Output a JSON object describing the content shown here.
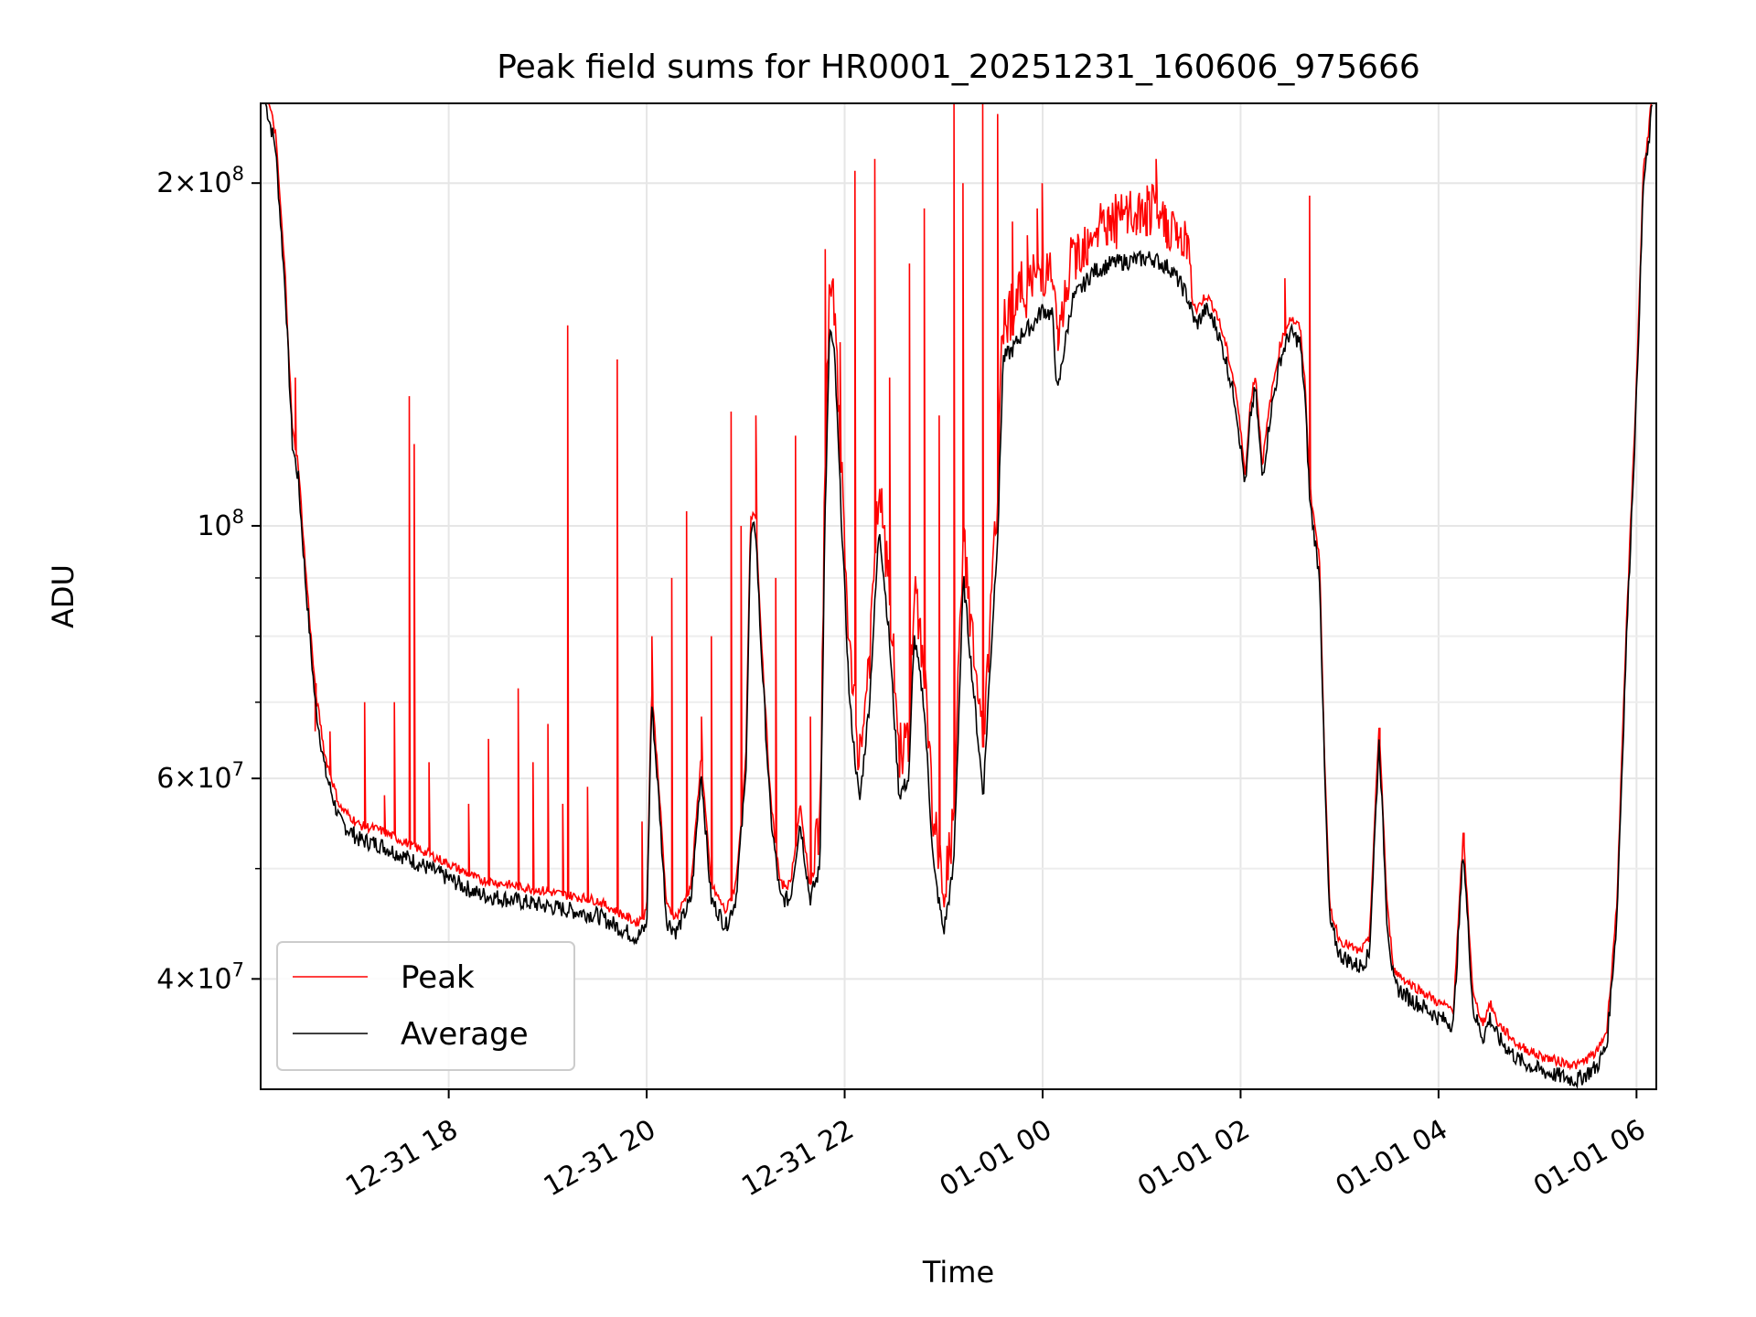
{
  "chart_data": {
    "type": "line",
    "title": "Peak field sums for HR0001_20251231_160606_975666",
    "xlabel": "Time",
    "ylabel": "ADU",
    "y_scale": "log",
    "ylim": [
      32000000,
      235000000
    ],
    "x_unit": "hours since 2025-12-31 16:06",
    "xlim": [
      0.0,
      14.1
    ],
    "grid": true,
    "legend_position": "lower-left",
    "x_ticks": [
      {
        "x": 1.9,
        "label": "12-31 18"
      },
      {
        "x": 3.9,
        "label": "12-31 20"
      },
      {
        "x": 5.9,
        "label": "12-31 22"
      },
      {
        "x": 7.9,
        "label": "01-01 00"
      },
      {
        "x": 9.9,
        "label": "01-01 02"
      },
      {
        "x": 11.9,
        "label": "01-01 04"
      },
      {
        "x": 13.9,
        "label": "01-01 06"
      }
    ],
    "y_ticks": [
      {
        "y": 200000000,
        "mantissa": "2",
        "times": "×10",
        "exp": "8"
      },
      {
        "y": 100000000,
        "mantissa": "",
        "times": "10",
        "exp": "8"
      },
      {
        "y": 60000000,
        "mantissa": "6",
        "times": "×10",
        "exp": "7"
      },
      {
        "y": 40000000,
        "mantissa": "4",
        "times": "×10",
        "exp": "7"
      }
    ],
    "y_minor_ticks": [
      50000000,
      70000000,
      80000000,
      90000000
    ],
    "legend": [
      {
        "name": "Peak",
        "color": "#ff0000"
      },
      {
        "name": "Average",
        "color": "#000000"
      }
    ],
    "series": [
      {
        "name": "Average",
        "color": "#000000",
        "points": [
          [
            0.05,
            235000000
          ],
          [
            0.15,
            215000000
          ],
          [
            0.25,
            160000000
          ],
          [
            0.32,
            118000000
          ],
          [
            0.38,
            110000000
          ],
          [
            0.45,
            90000000
          ],
          [
            0.55,
            70000000
          ],
          [
            0.65,
            61000000
          ],
          [
            0.8,
            55000000
          ],
          [
            1.0,
            53000000
          ],
          [
            1.2,
            52500000
          ],
          [
            1.4,
            51500000
          ],
          [
            1.6,
            50500000
          ],
          [
            1.8,
            49500000
          ],
          [
            2.0,
            48500000
          ],
          [
            2.2,
            47500000
          ],
          [
            2.5,
            47000000
          ],
          [
            2.8,
            46500000
          ],
          [
            3.1,
            46000000
          ],
          [
            3.4,
            45500000
          ],
          [
            3.6,
            44500000
          ],
          [
            3.8,
            43500000
          ],
          [
            3.9,
            44500000
          ],
          [
            3.95,
            70000000
          ],
          [
            4.02,
            58000000
          ],
          [
            4.1,
            45000000
          ],
          [
            4.2,
            44000000
          ],
          [
            4.35,
            47000000
          ],
          [
            4.45,
            61000000
          ],
          [
            4.55,
            47000000
          ],
          [
            4.7,
            44500000
          ],
          [
            4.8,
            47000000
          ],
          [
            4.9,
            60000000
          ],
          [
            4.95,
            98000000
          ],
          [
            5.0,
            100000000
          ],
          [
            5.05,
            80000000
          ],
          [
            5.15,
            56000000
          ],
          [
            5.25,
            47000000
          ],
          [
            5.35,
            47000000
          ],
          [
            5.45,
            55000000
          ],
          [
            5.55,
            47000000
          ],
          [
            5.65,
            50000000
          ],
          [
            5.7,
            100000000
          ],
          [
            5.75,
            150000000
          ],
          [
            5.8,
            140000000
          ],
          [
            5.85,
            110000000
          ],
          [
            5.95,
            70000000
          ],
          [
            6.05,
            57000000
          ],
          [
            6.15,
            70000000
          ],
          [
            6.25,
            100000000
          ],
          [
            6.35,
            80000000
          ],
          [
            6.45,
            58000000
          ],
          [
            6.55,
            60000000
          ],
          [
            6.6,
            80000000
          ],
          [
            6.7,
            70000000
          ],
          [
            6.8,
            50000000
          ],
          [
            6.9,
            44000000
          ],
          [
            7.0,
            50000000
          ],
          [
            7.1,
            90000000
          ],
          [
            7.2,
            72000000
          ],
          [
            7.3,
            58000000
          ],
          [
            7.35,
            70000000
          ],
          [
            7.45,
            100000000
          ],
          [
            7.5,
            140000000
          ],
          [
            7.6,
            143000000
          ],
          [
            7.7,
            148000000
          ],
          [
            7.8,
            150000000
          ],
          [
            7.9,
            155000000
          ],
          [
            8.0,
            153000000
          ],
          [
            8.05,
            130000000
          ],
          [
            8.1,
            140000000
          ],
          [
            8.2,
            158000000
          ],
          [
            8.3,
            162000000
          ],
          [
            8.4,
            167000000
          ],
          [
            8.6,
            170000000
          ],
          [
            8.8,
            171000000
          ],
          [
            9.0,
            172000000
          ],
          [
            9.2,
            168000000
          ],
          [
            9.35,
            160000000
          ],
          [
            9.45,
            150000000
          ],
          [
            9.55,
            155000000
          ],
          [
            9.65,
            150000000
          ],
          [
            9.75,
            140000000
          ],
          [
            9.85,
            128000000
          ],
          [
            9.95,
            108000000
          ],
          [
            10.0,
            125000000
          ],
          [
            10.05,
            132000000
          ],
          [
            10.12,
            110000000
          ],
          [
            10.2,
            125000000
          ],
          [
            10.3,
            140000000
          ],
          [
            10.4,
            148000000
          ],
          [
            10.5,
            145000000
          ],
          [
            10.55,
            130000000
          ],
          [
            10.6,
            105000000
          ],
          [
            10.7,
            90000000
          ],
          [
            10.75,
            60000000
          ],
          [
            10.8,
            45000000
          ],
          [
            10.9,
            42000000
          ],
          [
            11.0,
            41500000
          ],
          [
            11.1,
            41000000
          ],
          [
            11.2,
            42000000
          ],
          [
            11.3,
            65000000
          ],
          [
            11.38,
            45000000
          ],
          [
            11.45,
            39500000
          ],
          [
            11.6,
            38500000
          ],
          [
            11.75,
            37800000
          ],
          [
            11.9,
            37000000
          ],
          [
            12.05,
            36500000
          ],
          [
            12.15,
            52000000
          ],
          [
            12.25,
            37500000
          ],
          [
            12.35,
            35500000
          ],
          [
            12.42,
            37000000
          ],
          [
            12.5,
            35500000
          ],
          [
            12.7,
            34000000
          ],
          [
            12.9,
            33300000
          ],
          [
            13.1,
            32900000
          ],
          [
            13.3,
            32600000
          ],
          [
            13.5,
            33500000
          ],
          [
            13.6,
            35000000
          ],
          [
            13.7,
            45000000
          ],
          [
            13.8,
            80000000
          ],
          [
            13.9,
            130000000
          ],
          [
            13.97,
            200000000
          ],
          [
            14.02,
            215000000
          ],
          [
            14.06,
            235000000
          ]
        ]
      },
      {
        "name": "Peak",
        "color": "#ff0000",
        "spikes": [
          [
            0.35,
            135000000
          ],
          [
            0.55,
            66000000
          ],
          [
            0.7,
            66000000
          ],
          [
            1.05,
            70000000
          ],
          [
            1.25,
            58000000
          ],
          [
            1.35,
            70000000
          ],
          [
            1.5,
            130000000
          ],
          [
            1.55,
            118000000
          ],
          [
            1.7,
            62000000
          ],
          [
            2.1,
            57000000
          ],
          [
            2.3,
            65000000
          ],
          [
            2.6,
            72000000
          ],
          [
            2.75,
            62000000
          ],
          [
            2.9,
            67000000
          ],
          [
            3.05,
            57000000
          ],
          [
            3.1,
            150000000
          ],
          [
            3.3,
            59000000
          ],
          [
            3.6,
            140000000
          ],
          [
            3.85,
            55000000
          ],
          [
            3.95,
            80000000
          ],
          [
            4.15,
            90000000
          ],
          [
            4.3,
            103000000
          ],
          [
            4.45,
            68000000
          ],
          [
            4.55,
            80000000
          ],
          [
            4.75,
            126000000
          ],
          [
            4.85,
            100000000
          ],
          [
            5.0,
            125000000
          ],
          [
            5.2,
            90000000
          ],
          [
            5.4,
            120000000
          ],
          [
            5.55,
            68000000
          ],
          [
            5.7,
            175000000
          ],
          [
            5.85,
            145000000
          ],
          [
            6.0,
            205000000
          ],
          [
            6.2,
            210000000
          ],
          [
            6.35,
            135000000
          ],
          [
            6.55,
            170000000
          ],
          [
            6.7,
            190000000
          ],
          [
            6.85,
            125000000
          ],
          [
            7.0,
            235000000
          ],
          [
            7.1,
            200000000
          ],
          [
            7.3,
            235000000
          ],
          [
            7.45,
            230000000
          ],
          [
            7.6,
            185000000
          ],
          [
            7.75,
            180000000
          ],
          [
            7.85,
            190000000
          ],
          [
            7.9,
            200000000
          ],
          [
            8.05,
            150000000
          ],
          [
            8.15,
            162000000
          ],
          [
            8.25,
            168000000
          ],
          [
            8.35,
            170000000
          ],
          [
            8.45,
            180000000
          ],
          [
            8.55,
            178000000
          ],
          [
            8.65,
            175000000
          ],
          [
            8.75,
            195000000
          ],
          [
            8.85,
            180000000
          ],
          [
            8.95,
            185000000
          ],
          [
            9.05,
            210000000
          ],
          [
            9.15,
            190000000
          ],
          [
            9.25,
            178000000
          ],
          [
            9.35,
            180000000
          ],
          [
            10.35,
            165000000
          ],
          [
            10.6,
            195000000
          ],
          [
            11.3,
            66000000
          ],
          [
            12.15,
            53000000
          ]
        ]
      }
    ]
  }
}
